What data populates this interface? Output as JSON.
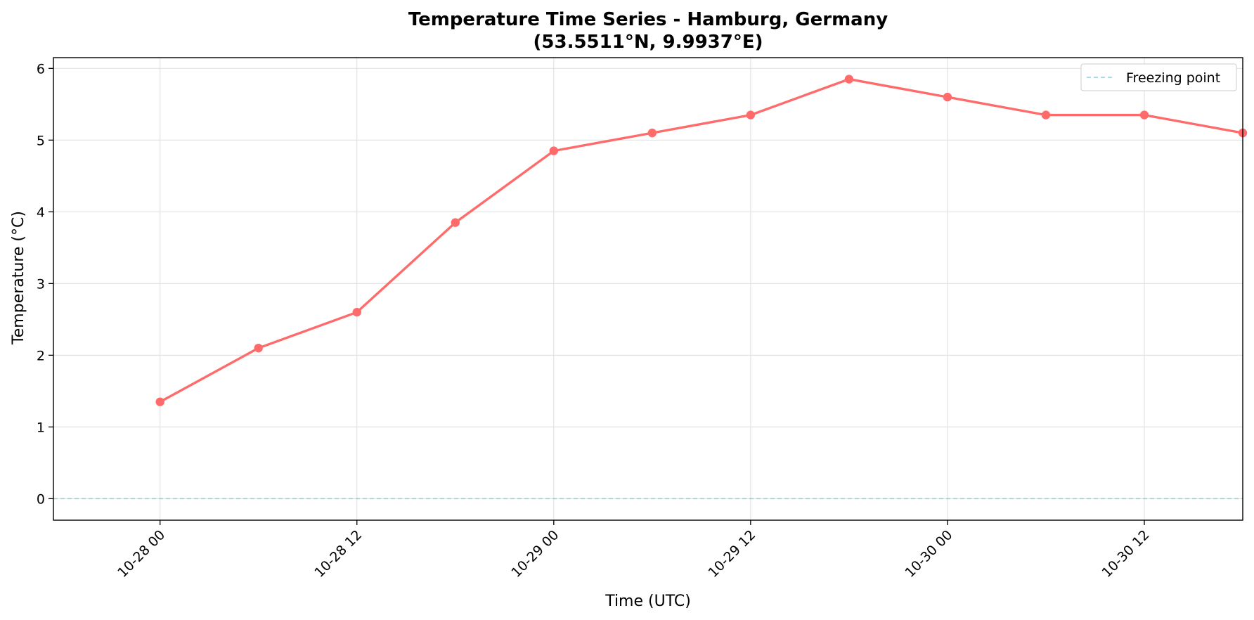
{
  "chart_data": {
    "type": "line",
    "title": "Temperature Time Series - Hamburg, Germany",
    "subtitle": "(53.5511°N, 9.9937°E)",
    "xlabel": "Time (UTC)",
    "ylabel": "Temperature (°C)",
    "x_tick_labels": [
      "10-28 00",
      "10-28 12",
      "10-29 00",
      "10-29 12",
      "10-30 00",
      "10-30 12"
    ],
    "x_tick_hours": [
      0,
      12,
      24,
      36,
      48,
      60
    ],
    "xlim_hours": [
      -6.5,
      66.0
    ],
    "ylim": [
      -0.3,
      6.15
    ],
    "y_ticks": [
      0,
      1,
      2,
      3,
      4,
      5,
      6
    ],
    "grid": true,
    "legend_position": "top-right",
    "series": [
      {
        "color": "#ff6b6b",
        "x_hours": [
          0,
          6,
          12,
          18,
          24,
          30,
          36,
          42,
          48,
          54,
          60,
          66
        ],
        "x_labels": [
          "10-28 00:00",
          "10-28 06:00",
          "10-28 12:00",
          "10-28 18:00",
          "10-29 00:00",
          "10-29 06:00",
          "10-29 12:00",
          "10-29 18:00",
          "10-30 00:00",
          "10-30 06:00",
          "10-30 12:00",
          "10-30 18:00"
        ],
        "values": [
          1.35,
          2.1,
          2.6,
          3.85,
          4.85,
          5.1,
          5.35,
          5.85,
          5.6,
          5.35,
          5.35,
          5.1
        ]
      }
    ],
    "reference_lines": [
      {
        "name": "Freezing point",
        "y": 0,
        "color": "#8fd3d6",
        "style": "dashed"
      }
    ]
  }
}
